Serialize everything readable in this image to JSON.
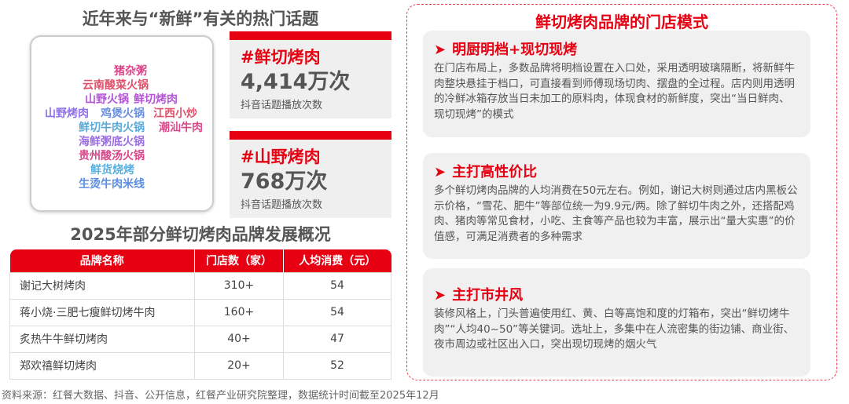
{
  "left": {
    "cloud_title": "近年来与“新鲜”有关的热门话题",
    "cloud_words": [
      {
        "text": "猪杂粥",
        "color": "#d9468a"
      },
      {
        "text": "云南酸菜火锅",
        "color": "#e0506a"
      },
      {
        "text": "山野火锅",
        "color": "#b454d8"
      },
      {
        "text": "鲜切烤肉",
        "color": "#b454d8"
      },
      {
        "text": "山野烤肉",
        "color": "#8f6fe8"
      },
      {
        "text": "鸡煲火锅",
        "color": "#6a8fe0"
      },
      {
        "text": "江西小炒",
        "color": "#e0506a"
      },
      {
        "text": "鲜切牛肉火锅",
        "color": "#5aaad8"
      },
      {
        "text": "潮汕牛肉",
        "color": "#d9468a"
      },
      {
        "text": "海鲜粥底火锅",
        "color": "#9b6fe0"
      },
      {
        "text": "贵州酸汤火锅",
        "color": "#d9468a"
      },
      {
        "text": "鲜货烧烤",
        "color": "#5ab0e0"
      },
      {
        "text": "生烫牛肉米线",
        "color": "#5b8de0"
      }
    ],
    "topics": [
      {
        "tag": "#鲜切烤肉",
        "value": "4,414万次",
        "caption": "抖音话题播放次数"
      },
      {
        "tag": "#山野烤肉",
        "value": "768万次",
        "caption": "抖音话题播放次数"
      }
    ],
    "table_title": "2025年部分鲜切烤肉品牌发展概况",
    "table": {
      "headers": [
        "品牌名称",
        "门店数（家）",
        "人均消费（元）"
      ],
      "rows": [
        [
          "谢记大树烤肉",
          "310+",
          "54"
        ],
        [
          "蒋小烧·三肥七瘦鲜切烤牛肉",
          "160+",
          "54"
        ],
        [
          "炙热牛牛鲜切烤肉",
          "40+",
          "47"
        ],
        [
          "郑欢禧鲜切烤肉",
          "20+",
          "52"
        ]
      ]
    }
  },
  "right": {
    "title": "鲜切烤肉品牌的门店模式",
    "sections": [
      {
        "heading": "明厨明档+现切现烤",
        "text": "在门店布局上，多数品牌将明档设置在入口处，采用透明玻璃隔断，将新鲜牛肉整块悬挂于档口，可直接看到师傅现场切肉、摆盘的全过程。店内则用透明的冷鲜冰箱存放当日未加工的原料肉，体现食材的新鲜度，突出“当日鲜肉、现切现烤”的模式"
      },
      {
        "heading": "主打高性价比",
        "text": "多个鲜切烤肉品牌的人均消费在50元左右。例如，谢记大树则通过店内黑板公示价格，“雪花、肥牛”等部位统一为9.9元/两。除了鲜切牛肉之外，还搭配鸡肉、猪肉等常见食材，小吃、主食等产品也较为丰富，展示出“量大实惠”的价值感，可满足消费者的多种需求"
      },
      {
        "heading": "主打市井风",
        "text": "装修风格上，门头普遍使用红、黄、白等高饱和度的灯箱布，突出“鲜切烤牛肉”“人均40~50”等关键词。选址上，多集中在人流密集的街边铺、商业街、夜市周边或社区出入口，突出现切现烤的烟火气"
      }
    ],
    "arrow_icon": "➤"
  },
  "source": "资料来源：红餐大数据、抖音、公开信息，红餐产业研究院整理，数据统计时间截至2025年12月",
  "colors": {
    "accent": "#e60012",
    "panel": "#f0f0f0"
  }
}
